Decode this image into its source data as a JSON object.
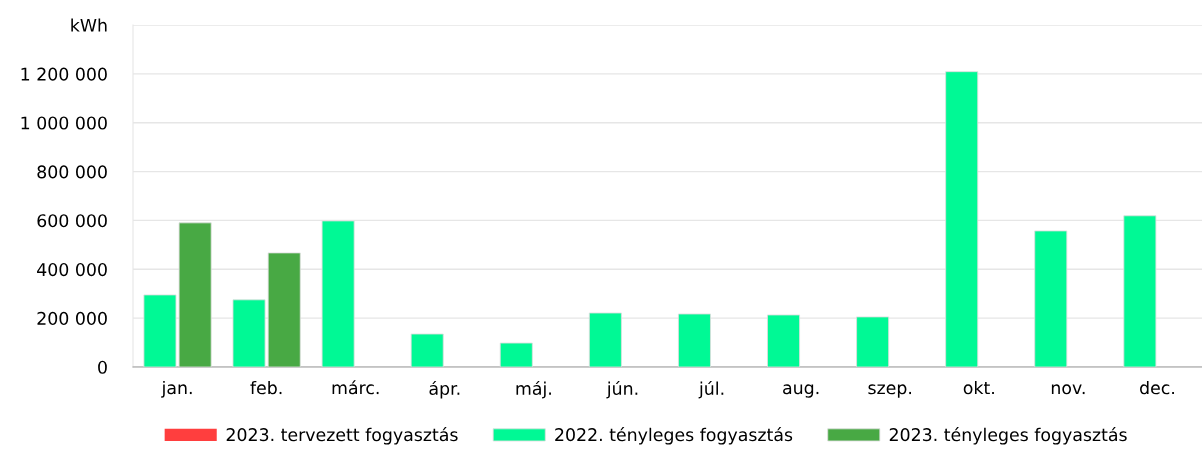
{
  "chart_data": {
    "type": "bar",
    "categories": [
      "jan.",
      "feb.",
      "márc.",
      "ápr.",
      "máj.",
      "jún.",
      "júl.",
      "aug.",
      "szep.",
      "okt.",
      "nov.",
      "dec."
    ],
    "series": [
      {
        "name": "2023. tervezett fogyasztás",
        "color": "#ff3e3e",
        "values": [
          null,
          null,
          null,
          null,
          null,
          null,
          null,
          null,
          null,
          null,
          null,
          null
        ]
      },
      {
        "name": "2022. tényleges fogyasztás",
        "color": "#00f995",
        "values": [
          295000,
          275000,
          598000,
          135000,
          98000,
          221000,
          217000,
          213000,
          205000,
          1209000,
          557000,
          619000
        ]
      },
      {
        "name": "2023. tényleges fogyasztás",
        "color": "#48a944",
        "values": [
          590000,
          467000,
          null,
          null,
          null,
          null,
          null,
          null,
          null,
          null,
          null,
          null
        ]
      }
    ],
    "ylim": [
      0,
      1400000
    ],
    "yticks": [
      0,
      {
        "value": 200000,
        "label": "200 000"
      },
      {
        "value": 400000,
        "label": "400 000"
      },
      {
        "value": 600000,
        "label": "600 000"
      },
      {
        "value": 800000,
        "label": "800 000"
      },
      {
        "value": 1000000,
        "label": "1 000 000"
      },
      {
        "value": 1200000,
        "label": "1 200 000"
      },
      {
        "value": 1400000,
        "label": "kWh"
      }
    ],
    "grid": "y",
    "legend": "bottom"
  }
}
